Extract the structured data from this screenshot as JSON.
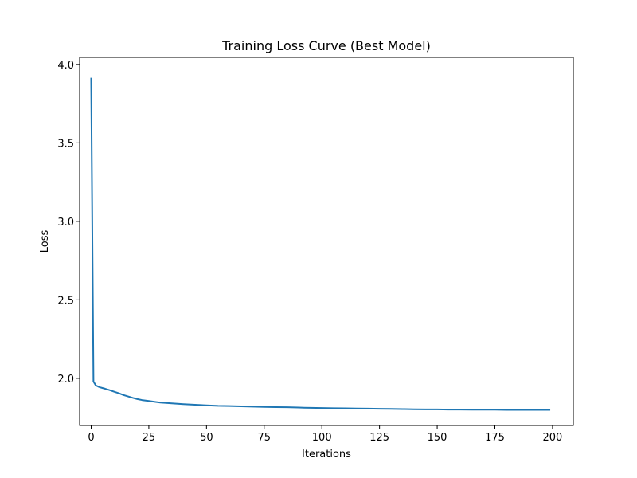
{
  "chart_data": {
    "type": "line",
    "title": "Training Loss Curve (Best Model)",
    "xlabel": "Iterations",
    "ylabel": "Loss",
    "xlim": [
      -5,
      209
    ],
    "ylim": [
      1.7,
      4.045
    ],
    "xticks": [
      0,
      25,
      50,
      75,
      100,
      125,
      150,
      175,
      200
    ],
    "yticks": [
      2.0,
      2.5,
      3.0,
      3.5,
      4.0
    ],
    "ytick_labels": [
      "2.0",
      "2.5",
      "3.0",
      "3.5",
      "4.0"
    ],
    "grid": false,
    "color": "#1f77b4",
    "series": [
      {
        "x": [
          0,
          1,
          2,
          3,
          4,
          5,
          6,
          8,
          10,
          12,
          14,
          16,
          18,
          20,
          22,
          25,
          28,
          30,
          35,
          40,
          45,
          50,
          55,
          60,
          65,
          70,
          75,
          80,
          85,
          90,
          95,
          100,
          105,
          110,
          115,
          120,
          125,
          130,
          135,
          140,
          145,
          150,
          155,
          160,
          165,
          170,
          175,
          180,
          185,
          190,
          195,
          199
        ],
        "y": [
          3.915,
          1.98,
          1.955,
          1.948,
          1.942,
          1.938,
          1.934,
          1.925,
          1.915,
          1.905,
          1.894,
          1.885,
          1.876,
          1.868,
          1.862,
          1.856,
          1.85,
          1.846,
          1.841,
          1.836,
          1.832,
          1.828,
          1.825,
          1.824,
          1.822,
          1.82,
          1.818,
          1.817,
          1.816,
          1.814,
          1.812,
          1.811,
          1.81,
          1.809,
          1.808,
          1.807,
          1.806,
          1.805,
          1.804,
          1.803,
          1.802,
          1.802,
          1.801,
          1.801,
          1.8,
          1.8,
          1.8,
          1.799,
          1.799,
          1.799,
          1.799,
          1.799
        ]
      }
    ]
  }
}
